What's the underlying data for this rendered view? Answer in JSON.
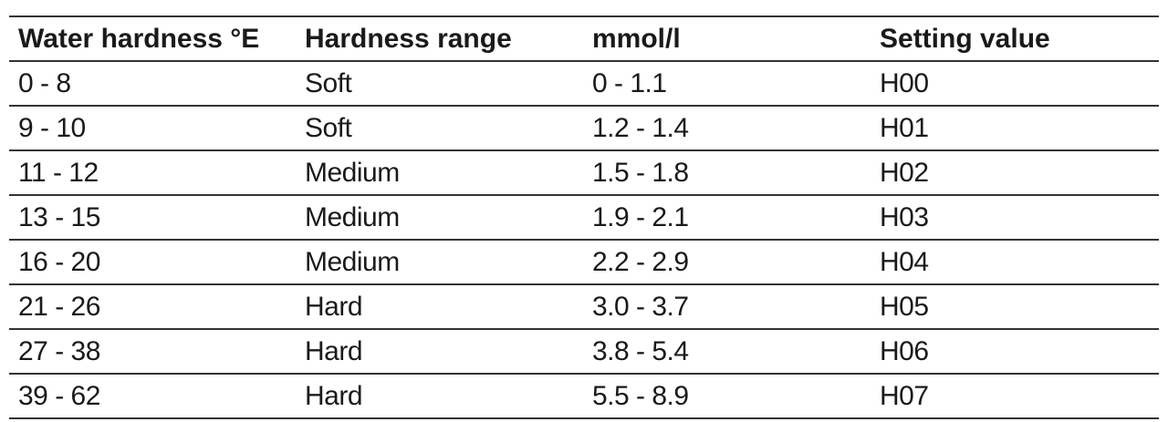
{
  "table": {
    "header": [
      "Water hardness °E",
      "Hardness range",
      "mmol/l",
      "Setting value"
    ],
    "rows": [
      [
        "0 - 8",
        "Soft",
        "0 - 1.1",
        "H00"
      ],
      [
        "9 - 10",
        "Soft",
        "1.2 - 1.4",
        "H01"
      ],
      [
        "11 - 12",
        "Medium",
        "1.5 - 1.8",
        "H02"
      ],
      [
        "13 - 15",
        "Medium",
        "1.9 - 2.1",
        "H03"
      ],
      [
        "16 - 20",
        "Medium",
        "2.2 - 2.9",
        "H04"
      ],
      [
        "21 - 26",
        "Hard",
        "3.0 - 3.7",
        "H05"
      ],
      [
        "27 - 38",
        "Hard",
        "3.8 - 5.4",
        "H06"
      ],
      [
        "39 - 62",
        "Hard",
        "5.5 - 8.9",
        "H07"
      ]
    ]
  }
}
